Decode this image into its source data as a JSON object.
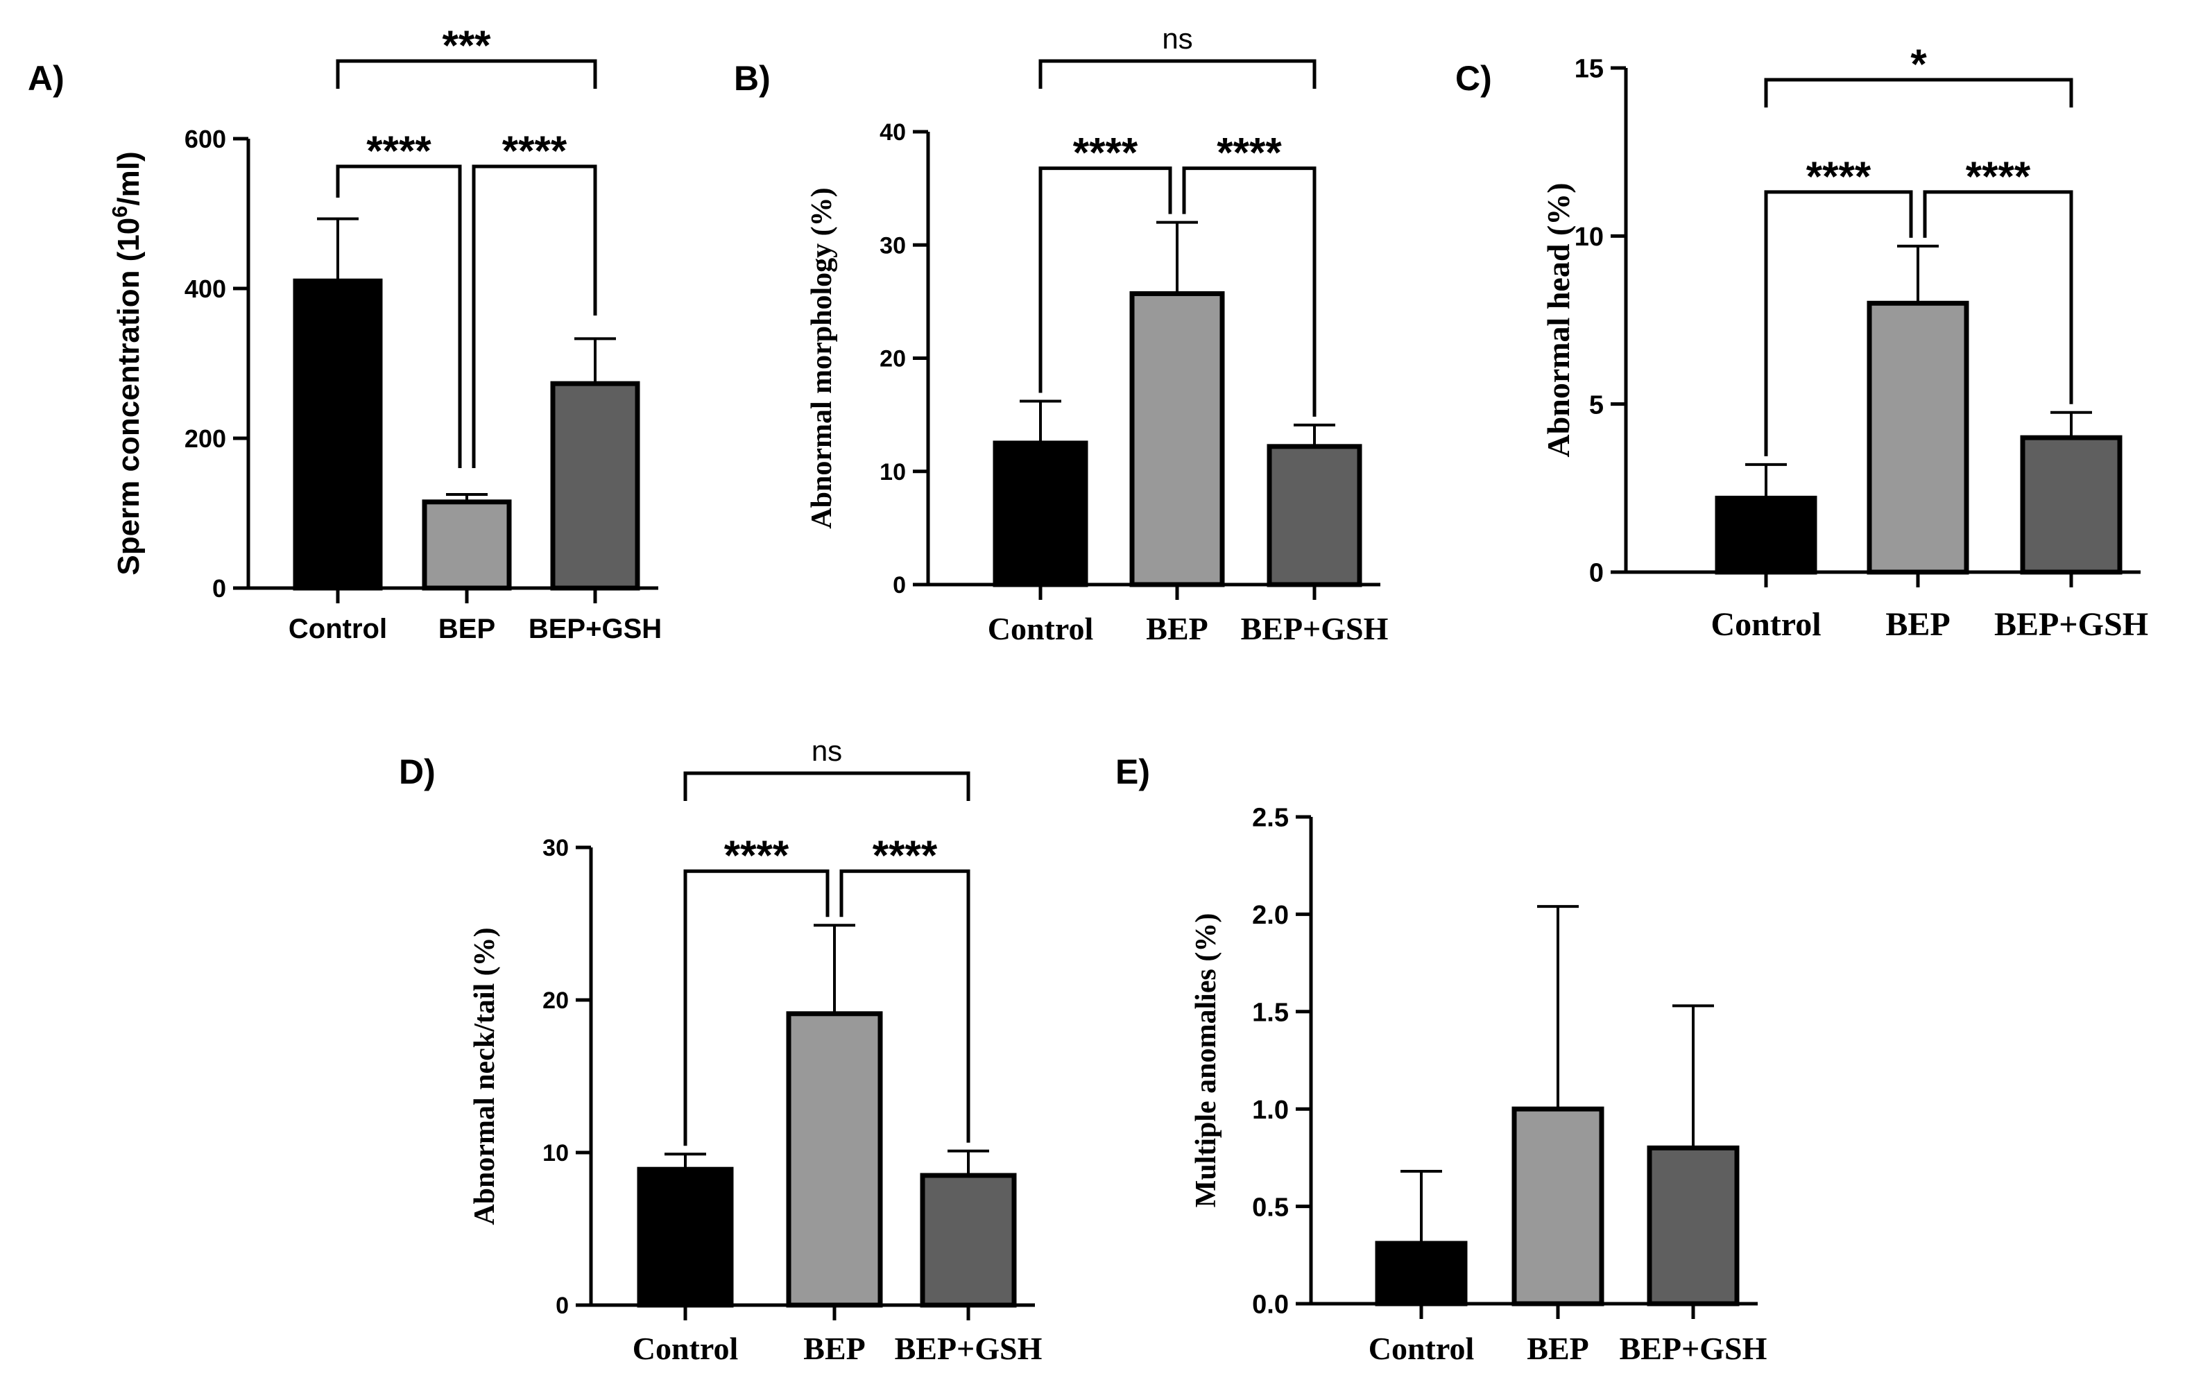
{
  "colors": {
    "control": "#000000",
    "bep": "#999999",
    "bep_gsh": "#5f5f5f",
    "axis": "#000000"
  },
  "chart_data": [
    {
      "panel": "A)",
      "type": "bar",
      "categories": [
        "Control",
        "BEP",
        "BEP+GSH"
      ],
      "values": [
        410,
        115,
        273
      ],
      "errors": [
        83,
        10,
        60
      ],
      "ylabel_main": "Sperm concentration (10",
      "ylabel_sup": "6",
      "ylabel_tail": "/ml)",
      "ylim": [
        0,
        600
      ],
      "yticks": [
        "0",
        "200",
        "400",
        "600"
      ],
      "ytick_values": [
        0,
        200,
        400,
        600
      ],
      "comparisons": [
        {
          "from": 0,
          "to": 2,
          "label": "***",
          "level": 1
        },
        {
          "from": 0,
          "to": 1,
          "label": "****",
          "level": 0
        },
        {
          "from": 1,
          "to": 2,
          "label": "****",
          "level": 0
        }
      ]
    },
    {
      "panel": "B)",
      "type": "bar",
      "categories": [
        "Control",
        "BEP",
        "BEP+GSH"
      ],
      "values": [
        12.5,
        25.7,
        12.2
      ],
      "errors": [
        3.7,
        6.3,
        1.9
      ],
      "ylabel_main": "Abnormal morphology (%)",
      "ylim": [
        0,
        40
      ],
      "yticks": [
        "0",
        "10",
        "20",
        "30",
        "40"
      ],
      "ytick_values": [
        0,
        10,
        20,
        30,
        40
      ],
      "comparisons": [
        {
          "from": 0,
          "to": 2,
          "label": "ns",
          "level": 1
        },
        {
          "from": 0,
          "to": 1,
          "label": "****",
          "level": 0
        },
        {
          "from": 1,
          "to": 2,
          "label": "****",
          "level": 0
        }
      ]
    },
    {
      "panel": "C)",
      "type": "bar",
      "categories": [
        "Control",
        "BEP",
        "BEP+GSH"
      ],
      "values": [
        2.2,
        8.0,
        4.0
      ],
      "errors": [
        1.0,
        1.7,
        0.75
      ],
      "ylabel_main": "Abnormal head (%)",
      "ylim": [
        0,
        15
      ],
      "yticks": [
        "0",
        "5",
        "10",
        "15"
      ],
      "ytick_values": [
        0,
        5,
        10,
        15
      ],
      "comparisons": [
        {
          "from": 0,
          "to": 2,
          "label": "*",
          "level": 1
        },
        {
          "from": 0,
          "to": 1,
          "label": "****",
          "level": 0
        },
        {
          "from": 1,
          "to": 2,
          "label": "****",
          "level": 0
        }
      ]
    },
    {
      "panel": "D)",
      "type": "bar",
      "categories": [
        "Control",
        "BEP",
        "BEP+GSH"
      ],
      "values": [
        8.9,
        19.1,
        8.5
      ],
      "errors": [
        1.0,
        5.8,
        1.6
      ],
      "ylabel_main": "Abnormal neck/tail (%)",
      "ylim": [
        0,
        30
      ],
      "yticks": [
        "0",
        "10",
        "20",
        "30"
      ],
      "ytick_values": [
        0,
        10,
        20,
        30
      ],
      "comparisons": [
        {
          "from": 0,
          "to": 2,
          "label": "ns",
          "level": 1
        },
        {
          "from": 0,
          "to": 1,
          "label": "****",
          "level": 0
        },
        {
          "from": 1,
          "to": 2,
          "label": "****",
          "level": 0
        }
      ]
    },
    {
      "panel": "E)",
      "type": "bar",
      "categories": [
        "Control",
        "BEP",
        "BEP+GSH"
      ],
      "values": [
        0.31,
        1.0,
        0.8
      ],
      "errors": [
        0.37,
        1.04,
        0.73
      ],
      "ylabel_main": "Multiple anomalies (%)",
      "ylim": [
        0,
        2.5
      ],
      "yticks": [
        "0.0",
        "0.5",
        "1.0",
        "1.5",
        "2.0",
        "2.5"
      ],
      "ytick_values": [
        0,
        0.5,
        1.0,
        1.5,
        2.0,
        2.5
      ],
      "comparisons": []
    }
  ]
}
